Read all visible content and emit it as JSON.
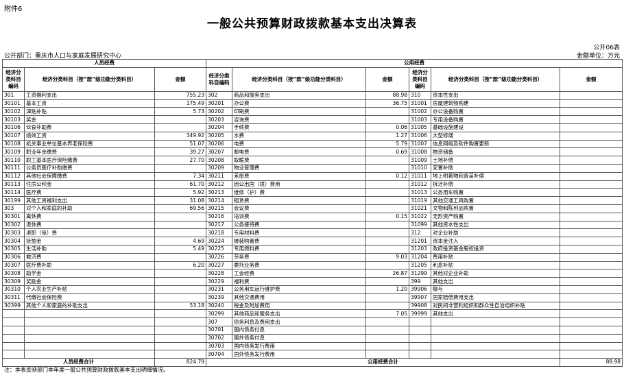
{
  "header": {
    "attachment": "附件6",
    "title": "一般公共预算财政拨款基本支出决算表",
    "form_no": "公开06表",
    "department": "公开部门：重庆市人口与家庭发展研究中心",
    "unit": "金额单位：万元"
  },
  "table": {
    "groups": [
      "人员经费",
      "公用经费"
    ],
    "columns": [
      "经济分类科目编码",
      "经济分类科目（按“款”级功能分类科目）",
      "金额",
      "经济分类科目编码",
      "经济分类科目（按“款”级功能分类科目）",
      "金额",
      "经济分类科目编码",
      "经济分类科目（按“款”级功能分类科目）",
      "金额"
    ],
    "rows": [
      [
        "301",
        "工资福利支出",
        "755.23",
        "302",
        "商品和服务支出",
        "88.98",
        "310",
        "资本性支出",
        null
      ],
      [
        "30101",
        "基本工资",
        "175.49",
        "30201",
        "办公费",
        "36.75",
        "31001",
        "房屋建筑物购建",
        null
      ],
      [
        "30102",
        "津贴补贴",
        "5.73",
        "30202",
        "印刷费",
        null,
        "31002",
        "办公设备购置",
        null
      ],
      [
        "30103",
        "奖金",
        null,
        "30203",
        "咨询费",
        null,
        "31003",
        "专用设备购置",
        null
      ],
      [
        "30106",
        "伙食补助费",
        null,
        "30204",
        "手续费",
        "0.06",
        "31005",
        "基础设施建设",
        null
      ],
      [
        "30107",
        "绩效工资",
        "349.92",
        "30205",
        "水费",
        "1.27",
        "31006",
        "大型修缮",
        null
      ],
      [
        "30108",
        "机关事业单位基本养老保险费",
        "51.07",
        "30206",
        "电费",
        "5.79",
        "31007",
        "信息网络及软件购置更新",
        null
      ],
      [
        "30109",
        "职业年金缴费",
        "39.27",
        "30207",
        "邮电费",
        "0.69",
        "31008",
        "物资储备",
        null
      ],
      [
        "30110",
        "职工基本医疗保险缴费",
        "27.70",
        "30208",
        "取暖费",
        null,
        "31009",
        "土地补偿",
        null
      ],
      [
        "30111",
        "公务员医疗补助缴费",
        null,
        "30209",
        "物业管理费",
        null,
        "31010",
        "安置补助",
        null
      ],
      [
        "30112",
        "其他社会保障缴费",
        "7.34",
        "30211",
        "差旅费",
        "0.12",
        "31011",
        "地上附着物和青苗补偿",
        null
      ],
      [
        "30113",
        "住房公积金",
        "61.70",
        "30212",
        "因公出国（境）费用",
        null,
        "31012",
        "拆迁补偿",
        null
      ],
      [
        "30114",
        "医疗费",
        "5.92",
        "30213",
        "维修（护）费",
        null,
        "31013",
        "公务用车购置",
        null
      ],
      [
        "30199",
        "其他工资福利支出",
        "31.08",
        "30214",
        "租赁费",
        null,
        "31019",
        "其他交通工具购置",
        null
      ],
      [
        "303",
        "对个人和家庭的补助",
        "69.56",
        "30215",
        "会议费",
        null,
        "31021",
        "文物和陈列品购置",
        null
      ],
      [
        "30301",
        "离休费",
        null,
        "30216",
        "培训费",
        "0.15",
        "31022",
        "无形资产购置",
        null
      ],
      [
        "30302",
        "退休费",
        null,
        "30217",
        "公务接待费",
        null,
        "31099",
        "其他资本性支出",
        null
      ],
      [
        "30303",
        "退职（役）费",
        null,
        "30218",
        "专用材料费",
        null,
        "312",
        "对企业补助",
        null
      ],
      [
        "30304",
        "抚恤金",
        "4.69",
        "30224",
        "被装购置费",
        null,
        "31201",
        "资本金注入",
        null
      ],
      [
        "30305",
        "生活补助",
        "5.49",
        "30225",
        "专用燃料费",
        null,
        "31203",
        "政府投资基金股权投资",
        null
      ],
      [
        "30306",
        "救济费",
        null,
        "30226",
        "劳务费",
        "9.03",
        "31204",
        "费用补贴",
        null
      ],
      [
        "30307",
        "医疗费补助",
        "6.20",
        "30227",
        "委托业务费",
        null,
        "31205",
        "利息补贴",
        null
      ],
      [
        "30308",
        "助学金",
        null,
        "30228",
        "工会经费",
        "26.87",
        "31299",
        "其他对企业补助",
        null
      ],
      [
        "30309",
        "奖励金",
        null,
        "30229",
        "福利费",
        null,
        "399",
        "其他支出",
        null
      ],
      [
        "30310",
        "个人农业生产补贴",
        null,
        "30231",
        "公务用车运行维护费",
        "1.20",
        "39906",
        "赠与",
        null
      ],
      [
        "30311",
        "代缴社会保险费",
        null,
        "30239",
        "其他交通费用",
        null,
        "39907",
        "国家赔偿费用支出",
        null
      ],
      [
        "30399",
        "其他个人和家庭的补助支出",
        "53.18",
        "30240",
        "税金及附加费用",
        null,
        "39908",
        "对民间非营利组织和群众性自治组织补贴",
        null
      ],
      [
        null,
        null,
        null,
        "30299",
        "其他商品和服务支出",
        "7.05",
        "39999",
        "其他支出",
        null
      ],
      [
        null,
        null,
        null,
        "307",
        "债务利息及费用支出",
        null,
        null,
        null,
        null
      ],
      [
        null,
        null,
        null,
        "30701",
        "国内债务付息",
        null,
        null,
        null,
        null
      ],
      [
        null,
        null,
        null,
        "30702",
        "国外债务付息",
        null,
        null,
        null,
        null
      ],
      [
        null,
        null,
        null,
        "30703",
        "国内债务发行费用",
        null,
        null,
        null,
        null
      ],
      [
        null,
        null,
        null,
        "30704",
        "国外债务发行费用",
        null,
        null,
        null,
        null
      ]
    ],
    "totals": [
      {
        "label": "人员经费合计",
        "value": "824.79"
      },
      {
        "label": "公用经费合计",
        "value": "88.98"
      }
    ]
  },
  "note": "注：本表反映部门本年度一般公共预算财政拨款基本支出明细情况。"
}
